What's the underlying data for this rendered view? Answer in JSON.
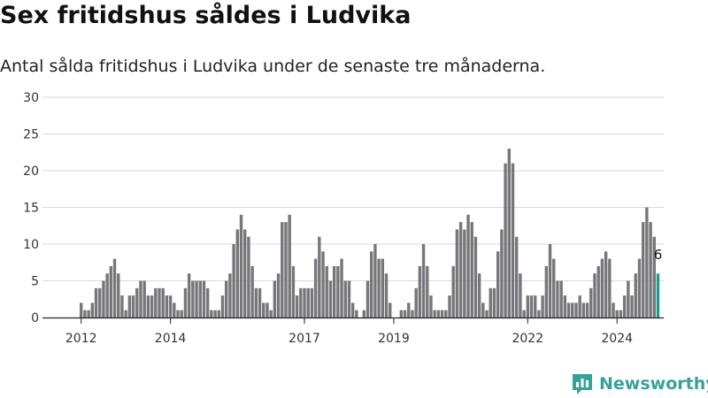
{
  "title": "Sex fritidshus såldes i Ludvika",
  "subtitle": "Antal sålda fritidshus i Ludvika under de senaste tre månaderna.",
  "brand": {
    "name": "Newsworthy",
    "logo_icon": "bar-chart-logo-icon",
    "color": "#35a39b"
  },
  "colors": {
    "bar": "#77767a",
    "highlight": "#1d9a91",
    "grid": "#d9d9d9",
    "axis": "#222222"
  },
  "chart_data": {
    "type": "bar",
    "title": "Sex fritidshus såldes i Ludvika",
    "subtitle": "Antal sålda fritidshus i Ludvika under de senaste tre månaderna.",
    "xlabel": "",
    "ylabel": "",
    "ylim": [
      0,
      30
    ],
    "y_ticks": [
      0,
      5,
      10,
      15,
      20,
      25,
      30
    ],
    "grid": true,
    "legend": "none",
    "x_ticks": [
      {
        "label": "2012",
        "index": 0
      },
      {
        "label": "2014",
        "index": 24
      },
      {
        "label": "2017",
        "index": 60
      },
      {
        "label": "2019",
        "index": 84
      },
      {
        "label": "2022",
        "index": 120
      },
      {
        "label": "2024",
        "index": 144
      }
    ],
    "values": [
      2,
      1,
      1,
      2,
      4,
      4,
      5,
      6,
      7,
      8,
      6,
      3,
      1,
      3,
      3,
      4,
      5,
      5,
      3,
      3,
      4,
      4,
      4,
      3,
      3,
      2,
      1,
      1,
      4,
      6,
      5,
      5,
      5,
      5,
      4,
      1,
      1,
      1,
      3,
      5,
      6,
      10,
      12,
      14,
      12,
      11,
      7,
      4,
      4,
      2,
      2,
      1,
      5,
      6,
      13,
      13,
      14,
      7,
      3,
      4,
      4,
      4,
      4,
      8,
      11,
      9,
      7,
      5,
      7,
      7,
      8,
      5,
      5,
      2,
      1,
      0,
      1,
      5,
      9,
      10,
      8,
      8,
      6,
      2,
      0,
      0,
      1,
      1,
      2,
      1,
      4,
      7,
      10,
      7,
      3,
      1,
      1,
      1,
      1,
      3,
      7,
      12,
      13,
      12,
      14,
      13,
      11,
      6,
      2,
      1,
      4,
      4,
      9,
      12,
      21,
      23,
      21,
      11,
      6,
      1,
      3,
      3,
      3,
      1,
      3,
      7,
      10,
      8,
      5,
      5,
      3,
      2,
      2,
      2,
      3,
      2,
      2,
      4,
      6,
      7,
      8,
      9,
      8,
      2,
      1,
      1,
      3,
      5,
      3,
      6,
      8,
      13,
      15,
      13,
      11,
      6
    ],
    "highlight_last": true,
    "annotations": [
      {
        "index": 155,
        "text": "6"
      }
    ]
  }
}
